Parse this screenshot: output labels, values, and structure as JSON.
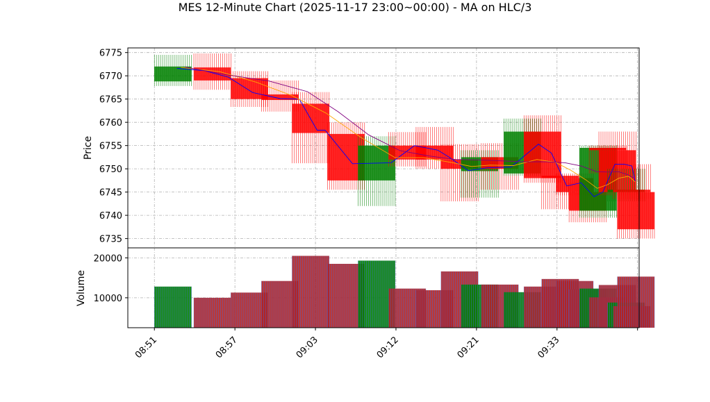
{
  "chart_data": {
    "type": "candlestick",
    "title": "MES 12-Minute Chart (2025-11-17 23:00~00:00) - MA on HLC/3",
    "price_panel": {
      "ylabel": "Price",
      "ylim": [
        6733,
        6776
      ],
      "yticks": [
        6735,
        6740,
        6745,
        6750,
        6755,
        6760,
        6765,
        6770,
        6775
      ],
      "grid": true
    },
    "volume_panel": {
      "ylabel": "Volume",
      "ylim": [
        2500,
        22500
      ],
      "yticks": [
        10000,
        20000
      ],
      "grid": true
    },
    "xlim": [
      -3.3,
      60.2
    ],
    "xticks": [
      {
        "pos": 0,
        "label": "08:51"
      },
      {
        "pos": 10,
        "label": "08:57"
      },
      {
        "pos": 20,
        "label": "09:03"
      },
      {
        "pos": 30,
        "label": "09:12"
      },
      {
        "pos": 40,
        "label": "09:21"
      },
      {
        "pos": 50,
        "label": "09:33"
      },
      {
        "pos": 60,
        "label": ""
      }
    ],
    "candle_width": 4.6,
    "candles": [
      {
        "x": 2.3,
        "open": 6768.8,
        "high": 6774.5,
        "low": 6767.8,
        "close": 6772.0,
        "volume": 12800
      },
      {
        "x": 7.2,
        "open": 6771.8,
        "high": 6774.8,
        "low": 6767.0,
        "close": 6769.0,
        "volume": 10000
      },
      {
        "x": 11.8,
        "open": 6769.5,
        "high": 6771.0,
        "low": 6763.3,
        "close": 6765.0,
        "volume": 11300
      },
      {
        "x": 15.6,
        "open": 6766.0,
        "high": 6769.0,
        "low": 6762.3,
        "close": 6764.8,
        "volume": 14200
      },
      {
        "x": 19.4,
        "open": 6764.0,
        "high": 6766.5,
        "low": 6751.2,
        "close": 6757.7,
        "volume": 20500
      },
      {
        "x": 23.8,
        "open": 6757.5,
        "high": 6760.0,
        "low": 6745.5,
        "close": 6747.5,
        "volume": 18500
      },
      {
        "x": 27.6,
        "open": 6747.5,
        "high": 6757.0,
        "low": 6742.0,
        "close": 6755.0,
        "volume": 19300
      },
      {
        "x": 31.4,
        "open": 6755.0,
        "high": 6757.9,
        "low": 6750.5,
        "close": 6752.0,
        "volume": 12300
      },
      {
        "x": 34.8,
        "open": 6755.0,
        "high": 6759.0,
        "low": 6750.0,
        "close": 6752.0,
        "volume": 11900
      },
      {
        "x": 37.9,
        "open": 6752.0,
        "high": 6755.3,
        "low": 6743.0,
        "close": 6750.0,
        "volume": 16600
      },
      {
        "x": 40.4,
        "open": 6749.5,
        "high": 6754.0,
        "low": 6743.8,
        "close": 6752.5,
        "volume": 13300
      },
      {
        "x": 42.9,
        "open": 6752.5,
        "high": 6755.5,
        "low": 6745.5,
        "close": 6750.0,
        "volume": 13300
      },
      {
        "x": 45.7,
        "open": 6749.0,
        "high": 6760.8,
        "low": 6748.5,
        "close": 6758.0,
        "volume": 11400
      },
      {
        "x": 48.2,
        "open": 6758.0,
        "high": 6761.5,
        "low": 6747.0,
        "close": 6748.0,
        "volume": 12800
      },
      {
        "x": 50.4,
        "open": 6748.5,
        "high": 6748.5,
        "low": 6741.3,
        "close": 6748.0,
        "volume": 14700
      },
      {
        "x": 52.2,
        "open": 6748.0,
        "high": 6749.0,
        "low": 6744.3,
        "close": 6745.0,
        "volume": 14200
      },
      {
        "x": 53.8,
        "open": 6745.0,
        "high": 6747.0,
        "low": 6738.5,
        "close": 6741.0,
        "volume": 12100
      },
      {
        "x": 55.1,
        "open": 6741.0,
        "high": 6755.0,
        "low": 6739.5,
        "close": 6754.5,
        "volume": 12300
      },
      {
        "x": 56.3,
        "open": 6754.5,
        "high": 6755.0,
        "low": 6749.0,
        "close": 6754.0,
        "volume": 10100
      },
      {
        "x": 57.5,
        "open": 6754.0,
        "high": 6758.0,
        "low": 6744.3,
        "close": 6745.0,
        "volume": 13200
      },
      {
        "x": 58.6,
        "open": 6745.0,
        "high": 6750.0,
        "low": 6743.0,
        "close": 6745.5,
        "volume": 8800
      },
      {
        "x": 59.3,
        "open": 6745.5,
        "high": 6751.0,
        "low": 6743.5,
        "close": 6745.0,
        "volume": 7900
      },
      {
        "x": 59.8,
        "open": 6745.0,
        "high": 6745.0,
        "low": 6735.0,
        "close": 6737.0,
        "volume": 15300
      }
    ],
    "series": [
      {
        "color": "#0000ff",
        "x": [
          2.8,
          6.2,
          9.2,
          12.2,
          15.6,
          18.0,
          20.2,
          21.2,
          24.6,
          29.4,
          32.3,
          35.2,
          36.6,
          39.0,
          41.2,
          44.3,
          47.7,
          49.3,
          51.2,
          53.0,
          54.6,
          55.7,
          57.2,
          58.3,
          59.3,
          59.7
        ],
        "y": [
          6771.6,
          6771.1,
          6769.7,
          6766.4,
          6765.1,
          6765.0,
          6758.3,
          6758.3,
          6751.1,
          6751.3,
          6755.0,
          6754.0,
          6752.5,
          6749.6,
          6750.2,
          6750.4,
          6755.3,
          6753.4,
          6746.3,
          6747.0,
          6744.0,
          6745.0,
          6751.0,
          6751.0,
          6750.6,
          6747.3
        ]
      },
      {
        "color": "#ffa500",
        "x": [
          3.3,
          8.1,
          12.7,
          17.0,
          21.3,
          25.6,
          29.9,
          33.4,
          36.8,
          39.4,
          41.7,
          44.6,
          47.5,
          49.8,
          51.7,
          53.6,
          55.0,
          56.3,
          57.7,
          58.9,
          59.7
        ],
        "y": [
          6771.8,
          6770.9,
          6768.6,
          6765.8,
          6762.0,
          6756.8,
          6752.4,
          6752.4,
          6751.4,
          6750.5,
          6750.8,
          6750.7,
          6752.0,
          6751.4,
          6749.7,
          6747.6,
          6745.8,
          6746.6,
          6748.0,
          6748.4,
          6747.2
        ]
      },
      {
        "color": "#800080",
        "x": [
          3.8,
          9.0,
          14.2,
          19.0,
          22.8,
          26.6,
          30.5,
          34.0,
          37.4,
          40.6,
          43.3,
          46.1,
          48.7,
          51.0,
          53.0,
          54.9,
          56.3,
          57.6,
          58.7,
          59.6
        ],
        "y": [
          6771.9,
          6770.2,
          6768.9,
          6766.6,
          6762.3,
          6757.3,
          6753.9,
          6752.8,
          6752.0,
          6751.9,
          6751.7,
          6751.5,
          6751.5,
          6751.3,
          6750.6,
          6749.4,
          6749.3,
          6749.4,
          6748.8,
          6748.0
        ]
      }
    ],
    "colors": {
      "up": "#008000",
      "down": "#ff0000",
      "grid": "#b0b0b0"
    }
  }
}
